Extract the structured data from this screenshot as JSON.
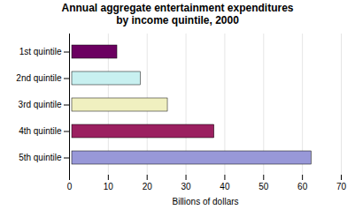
{
  "chart_data": {
    "type": "bar",
    "orientation": "horizontal",
    "title": "Annual aggregate entertainment expenditures\nby income quintile, 2000",
    "categories": [
      "1st quintile",
      "2nd quintile",
      "3rd quintile",
      "4th quintile",
      "5th quintile"
    ],
    "values": [
      13,
      19,
      26,
      38,
      63
    ],
    "colors": [
      "#6b0060",
      "#c8f0f0",
      "#f0f0c0",
      "#9b2060",
      "#9898d8"
    ],
    "xlabel": "Billions of dollars",
    "xlim": [
      0,
      70
    ],
    "xticks": [
      0,
      10,
      20,
      30,
      40,
      50,
      60,
      70
    ],
    "grid": true
  }
}
